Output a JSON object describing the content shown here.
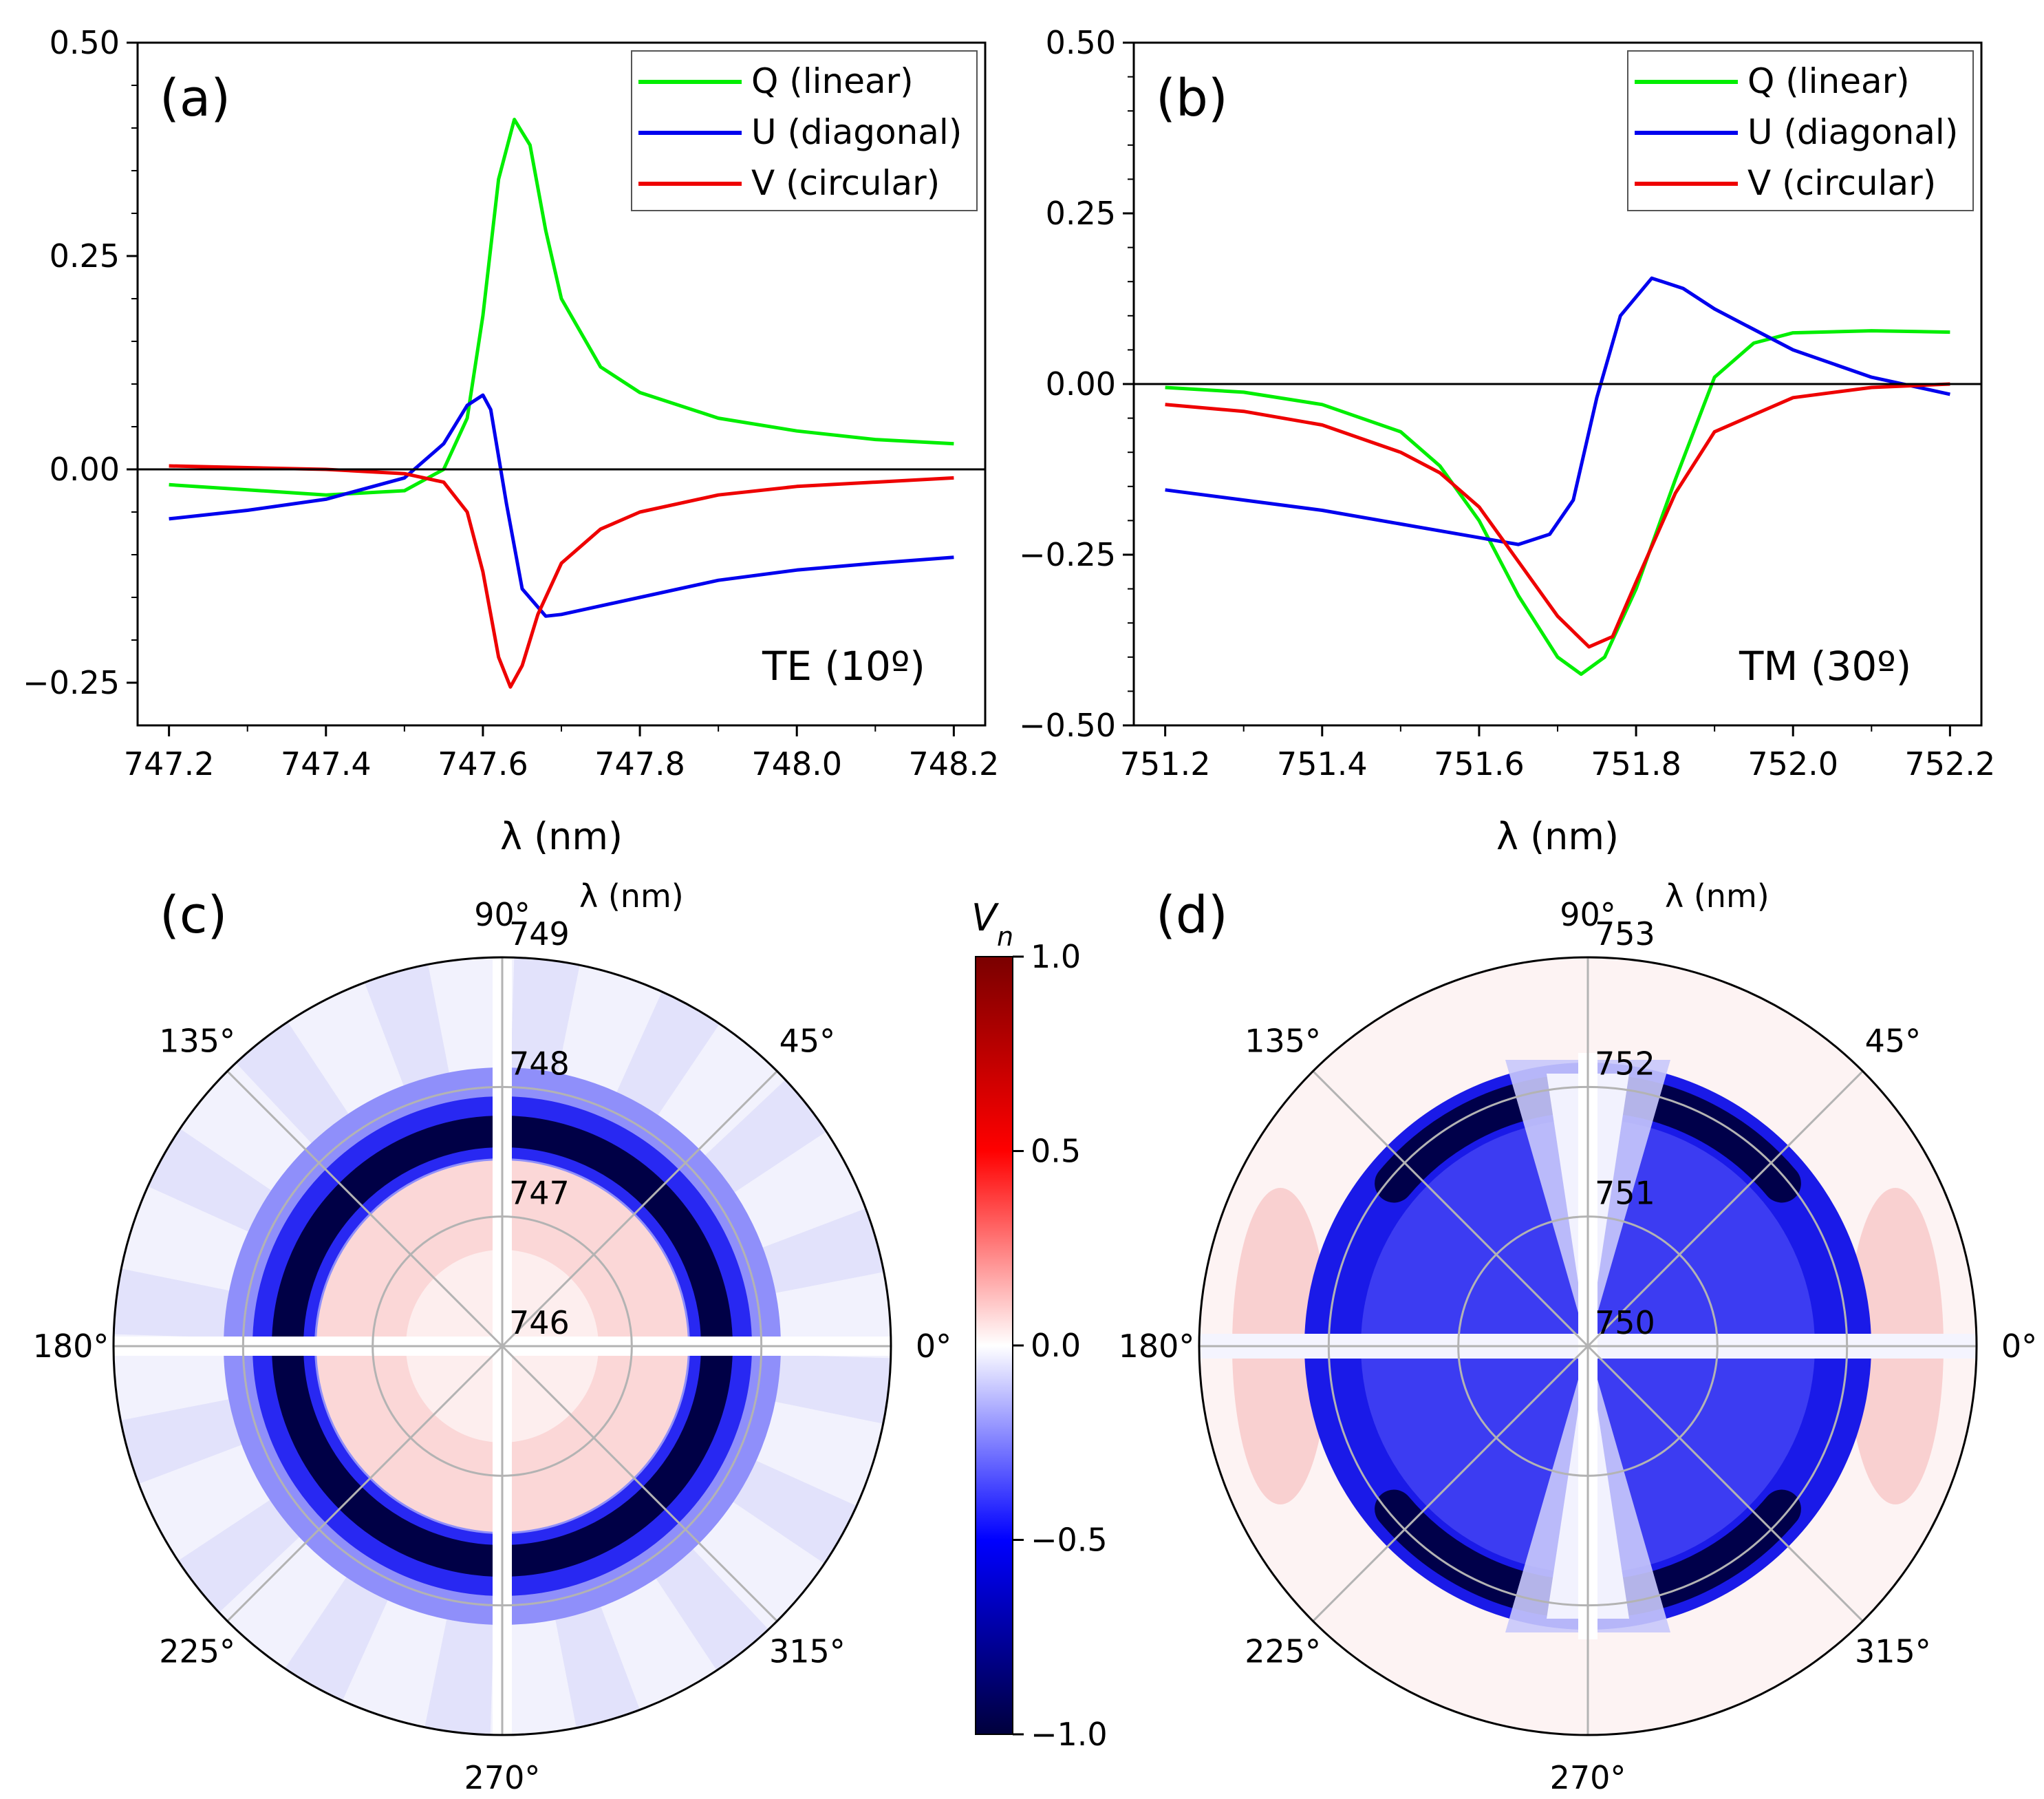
{
  "chart_data": [
    {
      "type": "line",
      "panel_label": "(a)",
      "annotation": "TE (10º)",
      "xlabel": "λ (nm)",
      "ylabel": "",
      "xlim": [
        747.16,
        748.24
      ],
      "ylim": [
        -0.3,
        0.5
      ],
      "x_ticks": [
        "747.2",
        "747.4",
        "747.6",
        "747.8",
        "748.0",
        "748.2"
      ],
      "y_ticks": [
        "−0.25",
        "0.00",
        "0.25",
        "0.50"
      ],
      "legend_position": "top-right",
      "series": [
        {
          "name": "Q (linear)",
          "color": "#00ee00",
          "points": [
            [
              747.2,
              -0.018
            ],
            [
              747.3,
              -0.024
            ],
            [
              747.4,
              -0.03
            ],
            [
              747.5,
              -0.025
            ],
            [
              747.55,
              0.0
            ],
            [
              747.58,
              0.06
            ],
            [
              747.6,
              0.18
            ],
            [
              747.62,
              0.34
            ],
            [
              747.64,
              0.41
            ],
            [
              747.66,
              0.38
            ],
            [
              747.68,
              0.28
            ],
            [
              747.7,
              0.2
            ],
            [
              747.75,
              0.12
            ],
            [
              747.8,
              0.09
            ],
            [
              747.9,
              0.06
            ],
            [
              748.0,
              0.045
            ],
            [
              748.1,
              0.035
            ],
            [
              748.2,
              0.03
            ]
          ]
        },
        {
          "name": "U (diagonal)",
          "color": "#0000ee",
          "points": [
            [
              747.2,
              -0.058
            ],
            [
              747.3,
              -0.048
            ],
            [
              747.4,
              -0.035
            ],
            [
              747.5,
              -0.01
            ],
            [
              747.55,
              0.03
            ],
            [
              747.58,
              0.075
            ],
            [
              747.6,
              0.087
            ],
            [
              747.61,
              0.07
            ],
            [
              747.63,
              -0.04
            ],
            [
              747.65,
              -0.14
            ],
            [
              747.68,
              -0.172
            ],
            [
              747.7,
              -0.17
            ],
            [
              747.8,
              -0.15
            ],
            [
              747.9,
              -0.13
            ],
            [
              748.0,
              -0.118
            ],
            [
              748.1,
              -0.11
            ],
            [
              748.2,
              -0.103
            ]
          ]
        },
        {
          "name": "V (circular)",
          "color": "#ee0000",
          "points": [
            [
              747.2,
              0.004
            ],
            [
              747.3,
              0.002
            ],
            [
              747.4,
              0.0
            ],
            [
              747.5,
              -0.005
            ],
            [
              747.55,
              -0.015
            ],
            [
              747.58,
              -0.05
            ],
            [
              747.6,
              -0.12
            ],
            [
              747.62,
              -0.22
            ],
            [
              747.635,
              -0.255
            ],
            [
              747.65,
              -0.23
            ],
            [
              747.67,
              -0.17
            ],
            [
              747.7,
              -0.11
            ],
            [
              747.75,
              -0.07
            ],
            [
              747.8,
              -0.05
            ],
            [
              747.9,
              -0.03
            ],
            [
              748.0,
              -0.02
            ],
            [
              748.1,
              -0.015
            ],
            [
              748.2,
              -0.01
            ]
          ]
        }
      ]
    },
    {
      "type": "line",
      "panel_label": "(b)",
      "annotation": "TM (30º)",
      "xlabel": "λ (nm)",
      "ylabel": "",
      "xlim": [
        751.16,
        752.24
      ],
      "ylim": [
        -0.5,
        0.5
      ],
      "x_ticks": [
        "751.2",
        "751.4",
        "751.6",
        "751.8",
        "752.0",
        "752.2"
      ],
      "y_ticks": [
        "−0.50",
        "−0.25",
        "0.00",
        "0.25",
        "0.50"
      ],
      "legend_position": "top-right",
      "series": [
        {
          "name": "Q (linear)",
          "color": "#00ee00",
          "points": [
            [
              751.2,
              -0.005
            ],
            [
              751.3,
              -0.012
            ],
            [
              751.4,
              -0.03
            ],
            [
              751.5,
              -0.07
            ],
            [
              751.55,
              -0.12
            ],
            [
              751.6,
              -0.2
            ],
            [
              751.65,
              -0.31
            ],
            [
              751.7,
              -0.4
            ],
            [
              751.73,
              -0.425
            ],
            [
              751.76,
              -0.4
            ],
            [
              751.8,
              -0.3
            ],
            [
              751.85,
              -0.14
            ],
            [
              751.9,
              0.01
            ],
            [
              751.95,
              0.06
            ],
            [
              752.0,
              0.075
            ],
            [
              752.1,
              0.078
            ],
            [
              752.2,
              0.076
            ]
          ]
        },
        {
          "name": "U (diagonal)",
          "color": "#0000ee",
          "points": [
            [
              751.2,
              -0.155
            ],
            [
              751.3,
              -0.17
            ],
            [
              751.4,
              -0.185
            ],
            [
              751.5,
              -0.205
            ],
            [
              751.6,
              -0.225
            ],
            [
              751.65,
              -0.235
            ],
            [
              751.69,
              -0.22
            ],
            [
              751.72,
              -0.17
            ],
            [
              751.75,
              -0.02
            ],
            [
              751.78,
              0.1
            ],
            [
              751.82,
              0.155
            ],
            [
              751.86,
              0.14
            ],
            [
              751.9,
              0.11
            ],
            [
              752.0,
              0.05
            ],
            [
              752.1,
              0.01
            ],
            [
              752.2,
              -0.015
            ]
          ]
        },
        {
          "name": "V (circular)",
          "color": "#ee0000",
          "points": [
            [
              751.2,
              -0.03
            ],
            [
              751.3,
              -0.04
            ],
            [
              751.4,
              -0.06
            ],
            [
              751.5,
              -0.1
            ],
            [
              751.55,
              -0.13
            ],
            [
              751.6,
              -0.18
            ],
            [
              751.65,
              -0.26
            ],
            [
              751.7,
              -0.34
            ],
            [
              751.74,
              -0.385
            ],
            [
              751.77,
              -0.37
            ],
            [
              751.8,
              -0.29
            ],
            [
              751.85,
              -0.16
            ],
            [
              751.9,
              -0.07
            ],
            [
              752.0,
              -0.02
            ],
            [
              752.1,
              -0.005
            ],
            [
              752.2,
              0.0
            ]
          ]
        }
      ]
    },
    {
      "type": "heatmap",
      "subtype": "polar",
      "panel_label": "(c)",
      "radial_label": "λ (nm)",
      "radial_ticks": [
        "746",
        "747",
        "748",
        "749"
      ],
      "radial_range": [
        746,
        749
      ],
      "angle_labels": [
        "0°",
        "45°",
        "90°",
        "135°",
        "180°",
        "225°",
        "270°",
        "315°"
      ],
      "resonance_nm": 747.9,
      "colorbar": {
        "label": "Vn",
        "min": -1.0,
        "max": 1.0,
        "ticks": [
          "1.0",
          "0.5",
          "0.0",
          "−0.5",
          "−1.0"
        ]
      }
    },
    {
      "type": "heatmap",
      "subtype": "polar",
      "panel_label": "(d)",
      "radial_label": "λ (nm)",
      "radial_ticks": [
        "750",
        "751",
        "752",
        "753"
      ],
      "radial_range": [
        750,
        753
      ],
      "angle_labels": [
        "0°",
        "45°",
        "90°",
        "135°",
        "180°",
        "225°",
        "270°",
        "315°"
      ],
      "resonance_nm": 752.0
    }
  ],
  "colors": {
    "q": "#00ee00",
    "u": "#0000ee",
    "v": "#ee0000",
    "cmap_low": "#00003c",
    "cmap_mid": "#ffffff",
    "cmap_high": "#7a0000",
    "grid": "#b3b3b3"
  }
}
